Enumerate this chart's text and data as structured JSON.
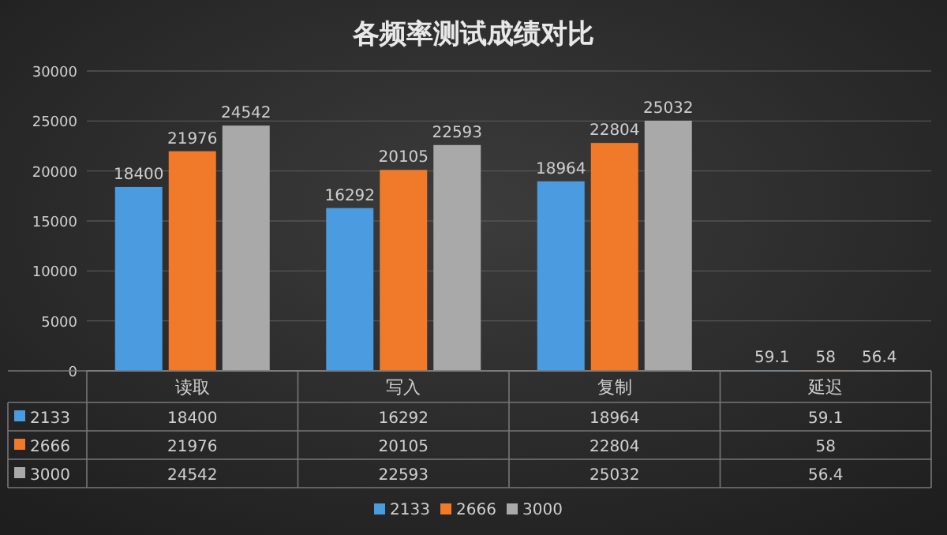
{
  "chart_data": {
    "type": "bar",
    "title": "各频率测试成绩对比",
    "categories": [
      "读取",
      "写入",
      "复制",
      "延迟"
    ],
    "series": [
      {
        "name": "2133",
        "color": "#4a9be0",
        "values": [
          18400,
          16292,
          18964,
          59.1
        ],
        "value_labels": [
          "18400",
          "16292",
          "18964",
          "59.1"
        ]
      },
      {
        "name": "2666",
        "color": "#f07a2a",
        "values": [
          21976,
          20105,
          22804,
          58
        ],
        "value_labels": [
          "21976",
          "20105",
          "22804",
          "58"
        ]
      },
      {
        "name": "3000",
        "color": "#a9a9a9",
        "values": [
          24542,
          22593,
          25032,
          56.4
        ],
        "value_labels": [
          "24542",
          "22593",
          "25032",
          "56.4"
        ]
      }
    ],
    "ylim": [
      0,
      30000
    ],
    "yticks": [
      0,
      5000,
      10000,
      15000,
      20000,
      25000,
      30000
    ],
    "grid": "y",
    "legend": "bottom",
    "annotations": [
      "18400",
      "16292",
      "18964",
      "59.1",
      "21976",
      "20105",
      "22804",
      "58",
      "24542",
      "22593",
      "25032",
      "56.4"
    ]
  }
}
